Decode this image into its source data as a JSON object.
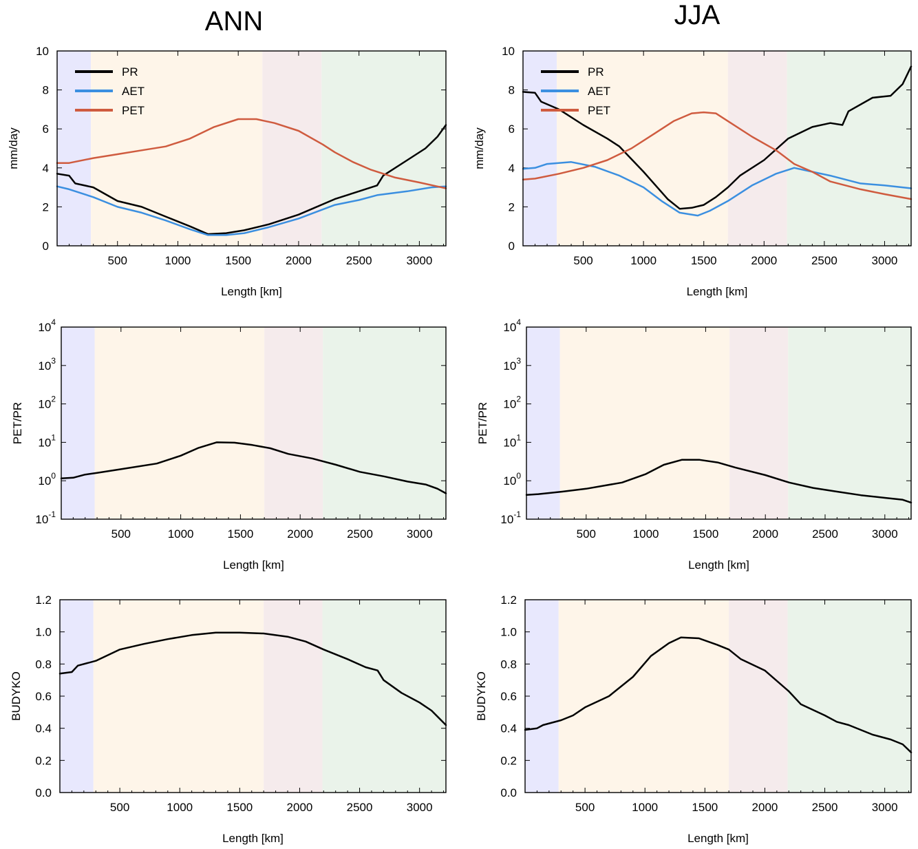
{
  "columns": [
    {
      "title": "ANN"
    },
    {
      "title": "JJA"
    }
  ],
  "colors": {
    "band1": "#e8e8fd",
    "band2": "#fef5e9",
    "band3": "#f5ebec",
    "band4": "#eaf3ea",
    "PR": "#000000",
    "AET": "#3b8fe0",
    "PET": "#cf5b3f"
  },
  "bands": [
    {
      "from": 0,
      "to": 280
    },
    {
      "from": 280,
      "to": 1700
    },
    {
      "from": 1700,
      "to": 2190
    },
    {
      "from": 2190,
      "to": 3220
    }
  ],
  "chart_data": [
    {
      "id": "ann-fluxes",
      "type": "line",
      "xlabel": "Length [km]",
      "ylabel": "mm/day",
      "xlim": [
        0,
        3220
      ],
      "ylim": [
        0,
        10
      ],
      "xticks": [
        "500",
        "1000",
        "1500",
        "2000",
        "2500",
        "3000"
      ],
      "yticks": [
        "0",
        "2",
        "4",
        "6",
        "8",
        "10"
      ],
      "legend": "top-left",
      "series": [
        {
          "name": "PR",
          "x": [
            0,
            100,
            150,
            300,
            500,
            700,
            900,
            1100,
            1250,
            1400,
            1550,
            1750,
            2000,
            2300,
            2500,
            2650,
            2700,
            2900,
            3050,
            3150,
            3220
          ],
          "y": [
            3.7,
            3.6,
            3.2,
            3.0,
            2.3,
            2.0,
            1.5,
            1.0,
            0.6,
            0.65,
            0.8,
            1.1,
            1.6,
            2.4,
            2.8,
            3.1,
            3.6,
            4.4,
            5.0,
            5.6,
            6.2
          ]
        },
        {
          "name": "AET",
          "x": [
            0,
            100,
            300,
            500,
            700,
            900,
            1100,
            1250,
            1400,
            1550,
            1750,
            2000,
            2300,
            2500,
            2650,
            2900,
            3100,
            3220
          ],
          "y": [
            3.05,
            2.9,
            2.5,
            2.0,
            1.7,
            1.3,
            0.85,
            0.55,
            0.55,
            0.65,
            0.95,
            1.4,
            2.1,
            2.35,
            2.6,
            2.8,
            3.0,
            3.05
          ]
        },
        {
          "name": "PET",
          "x": [
            0,
            100,
            300,
            500,
            700,
            900,
            1100,
            1300,
            1500,
            1650,
            1800,
            2000,
            2200,
            2300,
            2450,
            2600,
            2800,
            3000,
            3220
          ],
          "y": [
            4.25,
            4.25,
            4.5,
            4.7,
            4.9,
            5.1,
            5.5,
            6.1,
            6.5,
            6.5,
            6.3,
            5.9,
            5.2,
            4.8,
            4.3,
            3.9,
            3.5,
            3.25,
            2.95
          ]
        }
      ]
    },
    {
      "id": "jja-fluxes",
      "type": "line",
      "xlabel": "Length [km]",
      "ylabel": "mm/day",
      "xlim": [
        0,
        3220
      ],
      "ylim": [
        0,
        10
      ],
      "xticks": [
        "500",
        "1000",
        "1500",
        "2000",
        "2500",
        "3000"
      ],
      "yticks": [
        "0",
        "2",
        "4",
        "6",
        "8",
        "10"
      ],
      "legend": "top-left",
      "series": [
        {
          "name": "PR",
          "x": [
            0,
            100,
            150,
            300,
            500,
            700,
            800,
            1000,
            1200,
            1300,
            1400,
            1500,
            1600,
            1700,
            1800,
            2000,
            2200,
            2400,
            2550,
            2650,
            2700,
            2900,
            3050,
            3150,
            3220
          ],
          "y": [
            7.9,
            7.85,
            7.4,
            7.0,
            6.2,
            5.5,
            5.1,
            3.8,
            2.4,
            1.9,
            1.95,
            2.1,
            2.5,
            3.0,
            3.6,
            4.4,
            5.5,
            6.1,
            6.3,
            6.2,
            6.9,
            7.6,
            7.7,
            8.3,
            9.2
          ]
        },
        {
          "name": "AET",
          "x": [
            0,
            100,
            200,
            400,
            600,
            800,
            1000,
            1150,
            1300,
            1450,
            1550,
            1700,
            1900,
            2100,
            2250,
            2400,
            2550,
            2800,
            3000,
            3220
          ],
          "y": [
            3.95,
            4.0,
            4.2,
            4.3,
            4.05,
            3.6,
            3.0,
            2.3,
            1.7,
            1.55,
            1.8,
            2.3,
            3.1,
            3.7,
            4.0,
            3.8,
            3.6,
            3.2,
            3.1,
            2.95
          ]
        },
        {
          "name": "PET",
          "x": [
            0,
            100,
            300,
            500,
            700,
            900,
            1100,
            1250,
            1400,
            1500,
            1600,
            1700,
            1900,
            2100,
            2250,
            2400,
            2550,
            2800,
            3000,
            3220
          ],
          "y": [
            3.4,
            3.45,
            3.7,
            4.0,
            4.4,
            5.0,
            5.8,
            6.4,
            6.8,
            6.85,
            6.8,
            6.4,
            5.6,
            4.9,
            4.2,
            3.8,
            3.3,
            2.9,
            2.65,
            2.4
          ]
        }
      ]
    },
    {
      "id": "ann-ratio",
      "type": "line",
      "yscale": "log",
      "xlabel": "Length [km]",
      "ylabel": "PET/PR",
      "xlim": [
        0,
        3220
      ],
      "ylim": [
        0.1,
        10000
      ],
      "xticks": [
        "500",
        "1000",
        "1500",
        "2000",
        "2500",
        "3000"
      ],
      "yticks": [
        {
          "b": "10",
          "e": "-1"
        },
        {
          "b": "10",
          "e": "0"
        },
        {
          "b": "10",
          "e": "1"
        },
        {
          "b": "10",
          "e": "2"
        },
        {
          "b": "10",
          "e": "3"
        },
        {
          "b": "10",
          "e": "4"
        }
      ],
      "series": [
        {
          "x": [
            0,
            100,
            200,
            300,
            500,
            800,
            1000,
            1150,
            1300,
            1450,
            1600,
            1750,
            1900,
            2100,
            2300,
            2500,
            2700,
            2900,
            3050,
            3150,
            3220
          ],
          "y": [
            1.15,
            1.2,
            1.45,
            1.6,
            2.0,
            2.8,
            4.5,
            7.2,
            10,
            9.8,
            8.5,
            7.0,
            5.0,
            3.8,
            2.6,
            1.7,
            1.3,
            0.95,
            0.8,
            0.62,
            0.47
          ]
        }
      ]
    },
    {
      "id": "jja-ratio",
      "type": "line",
      "yscale": "log",
      "xlabel": "Length [km]",
      "ylabel": "PET/PR",
      "xlim": [
        0,
        3220
      ],
      "ylim": [
        0.1,
        10000
      ],
      "xticks": [
        "500",
        "1000",
        "1500",
        "2000",
        "2500",
        "3000"
      ],
      "yticks": [
        {
          "b": "10",
          "e": "-1"
        },
        {
          "b": "10",
          "e": "0"
        },
        {
          "b": "10",
          "e": "1"
        },
        {
          "b": "10",
          "e": "2"
        },
        {
          "b": "10",
          "e": "3"
        },
        {
          "b": "10",
          "e": "4"
        }
      ],
      "series": [
        {
          "x": [
            0,
            100,
            300,
            500,
            800,
            1000,
            1150,
            1300,
            1450,
            1600,
            1750,
            2000,
            2200,
            2400,
            2600,
            2800,
            3000,
            3150,
            3220
          ],
          "y": [
            0.43,
            0.45,
            0.52,
            0.62,
            0.9,
            1.5,
            2.6,
            3.5,
            3.5,
            3.0,
            2.2,
            1.4,
            0.9,
            0.65,
            0.52,
            0.42,
            0.36,
            0.32,
            0.27
          ]
        }
      ]
    },
    {
      "id": "ann-budyko",
      "type": "line",
      "xlabel": "Length [km]",
      "ylabel": "BUDYKO",
      "xlim": [
        0,
        3220
      ],
      "ylim": [
        0,
        1.2
      ],
      "xticks": [
        "500",
        "1000",
        "1500",
        "2000",
        "2500",
        "3000"
      ],
      "yticks": [
        "0.0",
        "0.2",
        "0.4",
        "0.6",
        "0.8",
        "1.0",
        "1.2"
      ],
      "series": [
        {
          "x": [
            0,
            100,
            150,
            300,
            500,
            700,
            900,
            1100,
            1300,
            1500,
            1700,
            1900,
            2050,
            2200,
            2400,
            2550,
            2650,
            2700,
            2850,
            3000,
            3100,
            3220
          ],
          "y": [
            0.74,
            0.75,
            0.79,
            0.82,
            0.89,
            0.925,
            0.955,
            0.98,
            0.995,
            0.995,
            0.99,
            0.97,
            0.94,
            0.89,
            0.83,
            0.78,
            0.76,
            0.7,
            0.62,
            0.56,
            0.51,
            0.42
          ]
        }
      ]
    },
    {
      "id": "jja-budyko",
      "type": "line",
      "xlabel": "Length [km]",
      "ylabel": "BUDYKO",
      "xlim": [
        0,
        3220
      ],
      "ylim": [
        0,
        1.2
      ],
      "xticks": [
        "500",
        "1000",
        "1500",
        "2000",
        "2500",
        "3000"
      ],
      "yticks": [
        "0.0",
        "0.2",
        "0.4",
        "0.6",
        "0.8",
        "1.0",
        "1.2"
      ],
      "series": [
        {
          "x": [
            0,
            100,
            150,
            300,
            400,
            500,
            700,
            900,
            1050,
            1200,
            1300,
            1450,
            1600,
            1700,
            1800,
            2000,
            2200,
            2300,
            2500,
            2600,
            2700,
            2900,
            3050,
            3150,
            3220
          ],
          "y": [
            0.39,
            0.4,
            0.42,
            0.45,
            0.48,
            0.53,
            0.6,
            0.72,
            0.85,
            0.93,
            0.965,
            0.96,
            0.92,
            0.89,
            0.83,
            0.76,
            0.63,
            0.55,
            0.48,
            0.44,
            0.42,
            0.36,
            0.33,
            0.3,
            0.25
          ]
        }
      ]
    }
  ]
}
